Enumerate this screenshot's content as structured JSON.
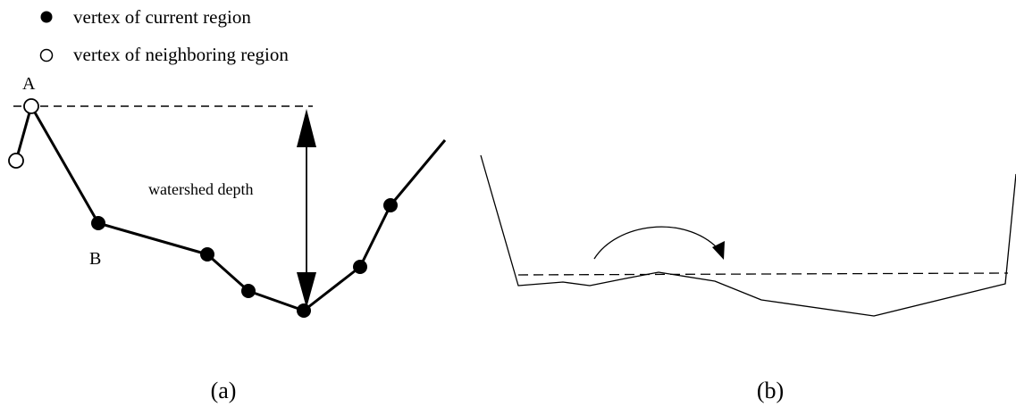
{
  "legend": {
    "filled_label": "vertex of current region",
    "open_label": "vertex of neighboring region"
  },
  "panel_a": {
    "label_a": "A",
    "label_b": "B",
    "depth_label": "watershed depth",
    "caption": "(a)"
  },
  "panel_b": {
    "caption": "(b)"
  }
}
